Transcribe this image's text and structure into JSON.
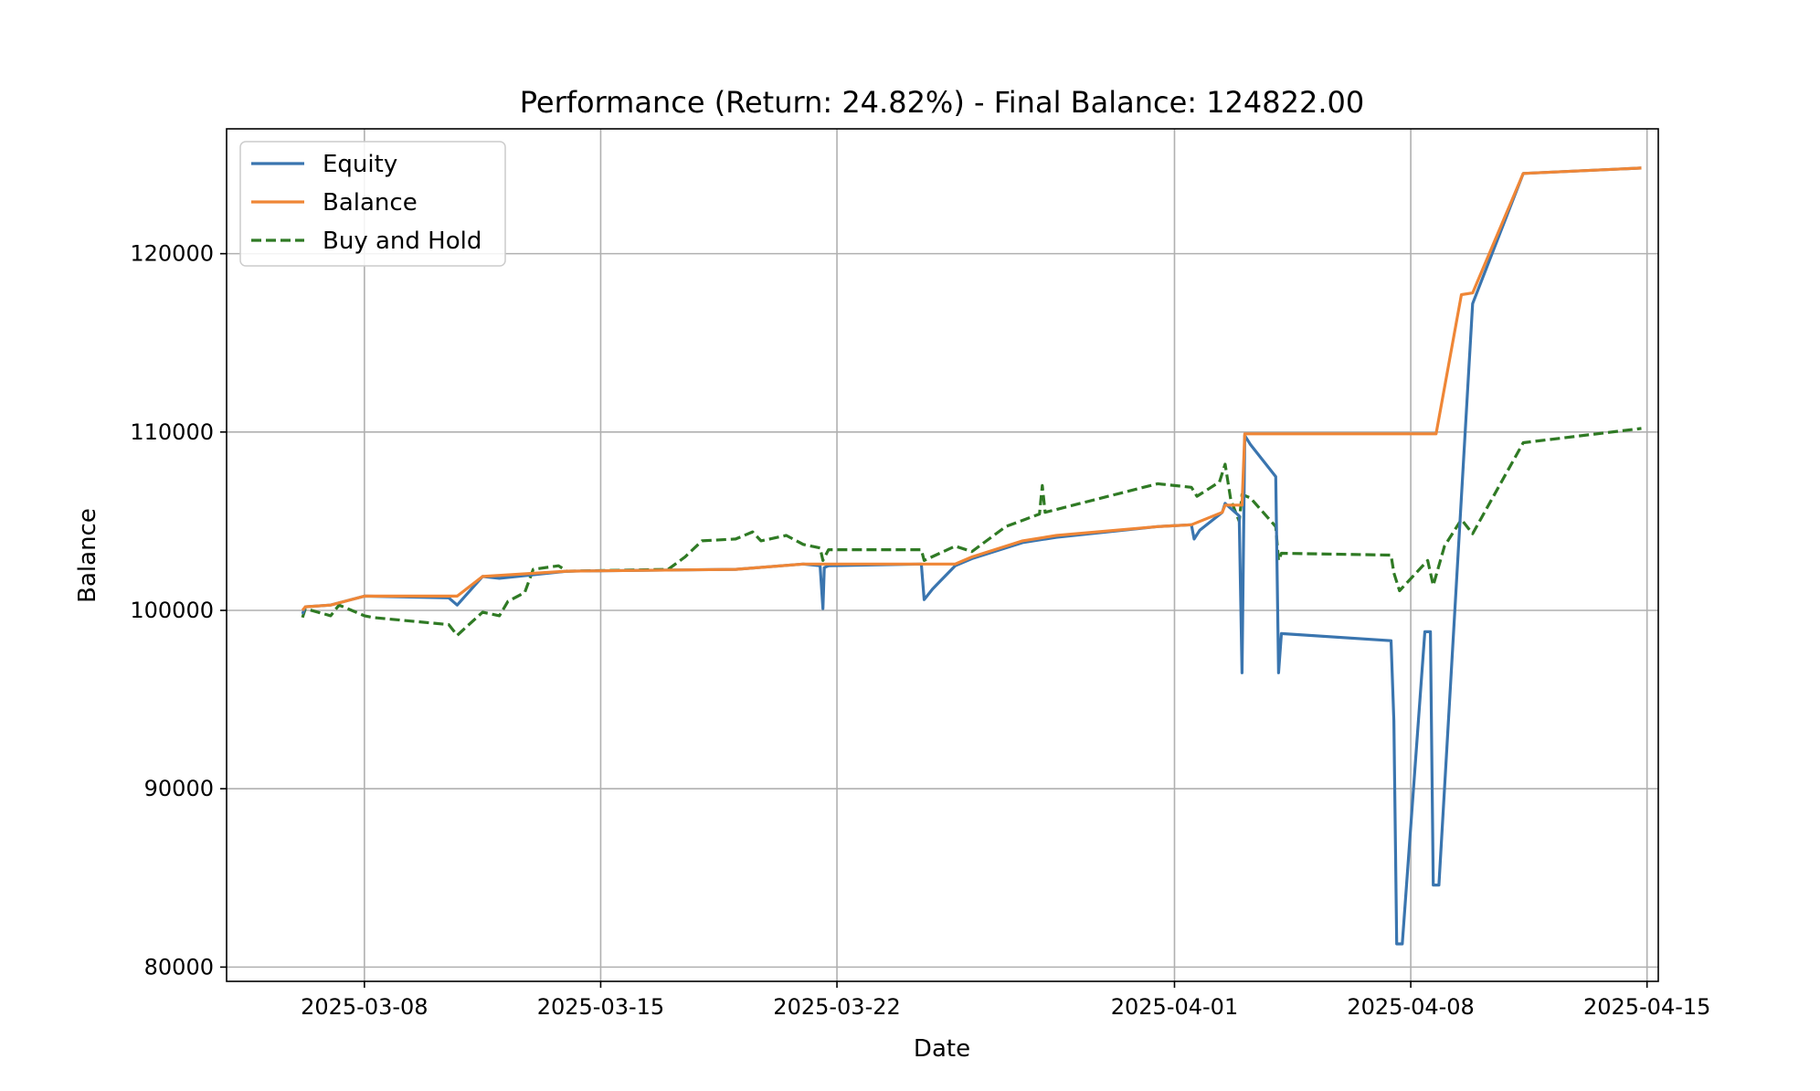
{
  "chart_data": {
    "type": "line",
    "title": "Performance (Return: 24.82%) - Final Balance: 124822.00",
    "xlabel": "Date",
    "ylabel": "Balance",
    "xlim": [
      "2025-03-03 22:00",
      "2025-04-15 08:00"
    ],
    "ylim": [
      79200,
      127000
    ],
    "grid": true,
    "legend_position": "top-left",
    "x_ticks": [
      "2025-03-08",
      "2025-03-15",
      "2025-03-22",
      "2025-04-01",
      "2025-04-08",
      "2025-04-15"
    ],
    "y_ticks": [
      80000,
      90000,
      100000,
      110000,
      120000
    ],
    "series": [
      {
        "name": "Equity",
        "color": "#3a75af",
        "style": "solid",
        "points": [
          [
            "2025-03-06 04:00",
            99800
          ],
          [
            "2025-03-06 06:00",
            100200
          ],
          [
            "2025-03-07 00:00",
            100300
          ],
          [
            "2025-03-08 00:00",
            100800
          ],
          [
            "2025-03-10 12:00",
            100700
          ],
          [
            "2025-03-10 18:00",
            100300
          ],
          [
            "2025-03-11 12:00",
            101900
          ],
          [
            "2025-03-12 00:00",
            101800
          ],
          [
            "2025-03-14 00:00",
            102200
          ],
          [
            "2025-03-19 00:00",
            102300
          ],
          [
            "2025-03-21 00:00",
            102600
          ],
          [
            "2025-03-21 12:00",
            102500
          ],
          [
            "2025-03-21 14:00",
            100100
          ],
          [
            "2025-03-21 15:00",
            102400
          ],
          [
            "2025-03-21 18:00",
            102500
          ],
          [
            "2025-03-24 12:00",
            102600
          ],
          [
            "2025-03-24 14:00",
            100600
          ],
          [
            "2025-03-24 20:00",
            101200
          ],
          [
            "2025-03-25 12:00",
            102500
          ],
          [
            "2025-03-26 00:00",
            102900
          ],
          [
            "2025-03-27 12:00",
            103800
          ],
          [
            "2025-03-28 12:00",
            104100
          ],
          [
            "2025-03-31 12:00",
            104700
          ],
          [
            "2025-04-01 12:00",
            104800
          ],
          [
            "2025-04-01 14:00",
            104000
          ],
          [
            "2025-04-01 18:00",
            104500
          ],
          [
            "2025-04-02 10:00",
            105500
          ],
          [
            "2025-04-02 12:00",
            106000
          ],
          [
            "2025-04-02 22:00",
            105300
          ],
          [
            "2025-04-03 00:00",
            96500
          ],
          [
            "2025-04-03 02:00",
            109800
          ],
          [
            "2025-04-03 06:00",
            109300
          ],
          [
            "2025-04-04 00:00",
            107500
          ],
          [
            "2025-04-04 02:00",
            96500
          ],
          [
            "2025-04-04 04:00",
            98700
          ],
          [
            "2025-04-07 10:00",
            98300
          ],
          [
            "2025-04-07 12:00",
            93800
          ],
          [
            "2025-04-07 14:00",
            81300
          ],
          [
            "2025-04-07 18:00",
            81300
          ],
          [
            "2025-04-08 10:00",
            98800
          ],
          [
            "2025-04-08 14:00",
            98800
          ],
          [
            "2025-04-08 16:00",
            84600
          ],
          [
            "2025-04-08 20:00",
            84600
          ],
          [
            "2025-04-09 20:00",
            117200
          ],
          [
            "2025-04-11 08:00",
            124500
          ],
          [
            "2025-04-14 20:00",
            124800
          ]
        ]
      },
      {
        "name": "Balance",
        "color": "#ef8636",
        "style": "solid",
        "points": [
          [
            "2025-03-06 04:00",
            100000
          ],
          [
            "2025-03-06 06:00",
            100200
          ],
          [
            "2025-03-07 00:00",
            100300
          ],
          [
            "2025-03-08 00:00",
            100800
          ],
          [
            "2025-03-10 18:00",
            100800
          ],
          [
            "2025-03-11 12:00",
            101900
          ],
          [
            "2025-03-14 00:00",
            102200
          ],
          [
            "2025-03-19 00:00",
            102300
          ],
          [
            "2025-03-21 00:00",
            102600
          ],
          [
            "2025-03-25 12:00",
            102600
          ],
          [
            "2025-03-26 00:00",
            103000
          ],
          [
            "2025-03-27 12:00",
            103900
          ],
          [
            "2025-03-28 12:00",
            104200
          ],
          [
            "2025-03-31 12:00",
            104700
          ],
          [
            "2025-04-01 12:00",
            104800
          ],
          [
            "2025-04-02 10:00",
            105500
          ],
          [
            "2025-04-02 12:00",
            105900
          ],
          [
            "2025-04-03 00:00",
            105900
          ],
          [
            "2025-04-03 02:00",
            109900
          ],
          [
            "2025-04-08 18:00",
            109900
          ],
          [
            "2025-04-09 12:00",
            117700
          ],
          [
            "2025-04-09 20:00",
            117800
          ],
          [
            "2025-04-11 08:00",
            124500
          ],
          [
            "2025-04-14 20:00",
            124800
          ]
        ]
      },
      {
        "name": "Buy and Hold",
        "color": "#2f7a24",
        "style": "dashed",
        "points": [
          [
            "2025-03-06 04:00",
            99600
          ],
          [
            "2025-03-06 06:00",
            100100
          ],
          [
            "2025-03-07 00:00",
            99700
          ],
          [
            "2025-03-07 06:00",
            100300
          ],
          [
            "2025-03-08 00:00",
            99700
          ],
          [
            "2025-03-08 06:00",
            99600
          ],
          [
            "2025-03-10 12:00",
            99200
          ],
          [
            "2025-03-10 18:00",
            98600
          ],
          [
            "2025-03-11 12:00",
            99900
          ],
          [
            "2025-03-12 00:00",
            99700
          ],
          [
            "2025-03-12 06:00",
            100500
          ],
          [
            "2025-03-12 18:00",
            101000
          ],
          [
            "2025-03-13 00:00",
            102300
          ],
          [
            "2025-03-13 18:00",
            102500
          ],
          [
            "2025-03-14 00:00",
            102200
          ],
          [
            "2025-03-17 00:00",
            102300
          ],
          [
            "2025-03-17 12:00",
            103000
          ],
          [
            "2025-03-18 00:00",
            103900
          ],
          [
            "2025-03-19 00:00",
            104000
          ],
          [
            "2025-03-19 12:00",
            104400
          ],
          [
            "2025-03-19 18:00",
            103900
          ],
          [
            "2025-03-20 12:00",
            104200
          ],
          [
            "2025-03-21 00:00",
            103700
          ],
          [
            "2025-03-21 12:00",
            103500
          ],
          [
            "2025-03-21 14:00",
            102800
          ],
          [
            "2025-03-21 18:00",
            103400
          ],
          [
            "2025-03-24 12:00",
            103400
          ],
          [
            "2025-03-24 14:00",
            102800
          ],
          [
            "2025-03-25 12:00",
            103600
          ],
          [
            "2025-03-26 00:00",
            103300
          ],
          [
            "2025-03-27 00:00",
            104700
          ],
          [
            "2025-03-28 00:00",
            105400
          ],
          [
            "2025-03-28 02:00",
            107000
          ],
          [
            "2025-03-28 04:00",
            105500
          ],
          [
            "2025-03-31 12:00",
            107100
          ],
          [
            "2025-04-01 12:00",
            106900
          ],
          [
            "2025-04-01 16:00",
            106400
          ],
          [
            "2025-04-02 08:00",
            107200
          ],
          [
            "2025-04-02 12:00",
            108200
          ],
          [
            "2025-04-02 16:00",
            106200
          ],
          [
            "2025-04-02 22:00",
            105000
          ],
          [
            "2025-04-03 00:00",
            106500
          ],
          [
            "2025-04-03 06:00",
            106300
          ],
          [
            "2025-04-04 00:00",
            104700
          ],
          [
            "2025-04-04 02:00",
            102800
          ],
          [
            "2025-04-04 04:00",
            103200
          ],
          [
            "2025-04-07 10:00",
            103100
          ],
          [
            "2025-04-07 12:00",
            102100
          ],
          [
            "2025-04-07 16:00",
            101100
          ],
          [
            "2025-04-08 12:00",
            102800
          ],
          [
            "2025-04-08 16:00",
            101400
          ],
          [
            "2025-04-09 00:00",
            103600
          ],
          [
            "2025-04-09 12:00",
            105100
          ],
          [
            "2025-04-09 20:00",
            104300
          ],
          [
            "2025-04-11 08:00",
            109400
          ],
          [
            "2025-04-14 20:00",
            110200
          ]
        ]
      }
    ]
  }
}
